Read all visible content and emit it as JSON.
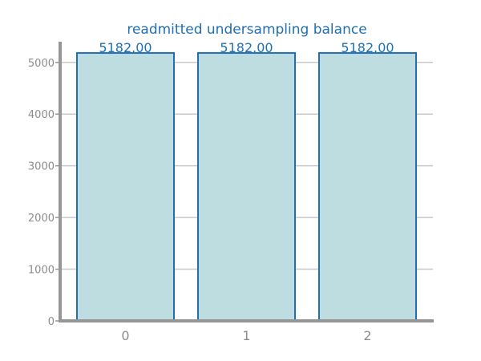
{
  "chart_data": {
    "type": "bar",
    "title": "readmitted undersampling balance",
    "xlabel": "",
    "ylabel": "",
    "categories": [
      "0",
      "1",
      "2"
    ],
    "values": [
      5182,
      5182,
      5182
    ],
    "value_labels": [
      "5182.00",
      "5182.00",
      "5182.00"
    ],
    "ylim": [
      0,
      5400
    ],
    "yticks": [
      0,
      1000,
      2000,
      3000,
      4000,
      5000
    ],
    "grid": true,
    "legend": "none",
    "colors": {
      "bar_fill": "#bedde1",
      "bar_edge": "#1f6fb2",
      "title": "#1f6fb2",
      "value_label": "#1f6fb2",
      "axis": "#969696",
      "grid": "#c8c8c8",
      "tick_label": "#8c8c8c"
    }
  }
}
